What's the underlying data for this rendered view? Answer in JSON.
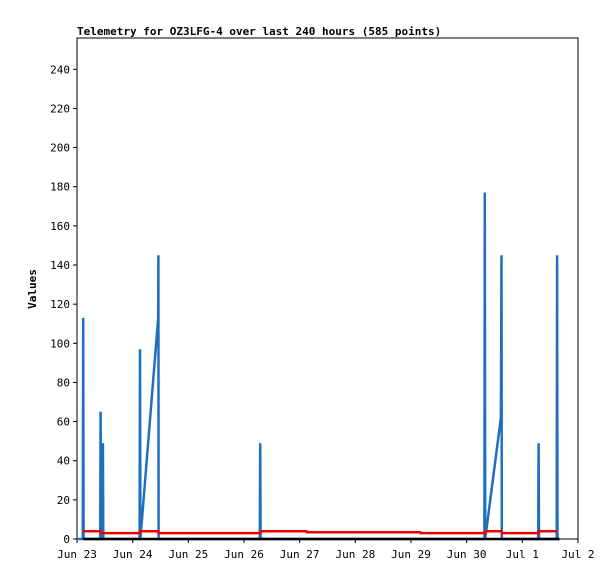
{
  "chart_data": {
    "type": "line",
    "title": "Telemetry for OZ3LFG-4 over last 240 hours (585 points)",
    "ylabel": "Values",
    "xlabel": "",
    "ylim": [
      0,
      256
    ],
    "xlim": [
      "Jun 23 00:00",
      "Jul 2 00:00"
    ],
    "grid": false,
    "yticks": [
      0,
      20,
      40,
      60,
      80,
      100,
      120,
      140,
      160,
      180,
      200,
      220,
      240
    ],
    "xticks": [
      "Jun 23",
      "Jun 24",
      "Jun 25",
      "Jun 26",
      "Jun 27",
      "Jun 28",
      "Jun 29",
      "Jun 30",
      "Jul 1",
      "Jul 2"
    ],
    "series": [
      {
        "color": "#1f6fc0",
        "points": [
          [
            "Jun 23 00:00",
            0
          ],
          [
            "Jun 23 02:30",
            0
          ],
          [
            "Jun 23 02:40",
            113
          ],
          [
            "Jun 23 02:50",
            0
          ],
          [
            "Jun 23 10:00",
            0
          ],
          [
            "Jun 23 10:10",
            65
          ],
          [
            "Jun 23 10:20",
            0
          ],
          [
            "Jun 23 11:00",
            0
          ],
          [
            "Jun 23 11:10",
            49
          ],
          [
            "Jun 23 11:20",
            0
          ],
          [
            "Jun 24 03:00",
            0
          ],
          [
            "Jun 24 03:10",
            97
          ],
          [
            "Jun 24 03:20",
            0
          ],
          [
            "Jun 24 11:00",
            113
          ],
          [
            "Jun 24 11:05",
            145
          ],
          [
            "Jun 24 11:10",
            0
          ],
          [
            "Jun 26 06:50",
            0
          ],
          [
            "Jun 26 07:00",
            49
          ],
          [
            "Jun 26 07:10",
            0
          ],
          [
            "Jun 30 07:40",
            0
          ],
          [
            "Jun 30 07:50",
            177
          ],
          [
            "Jun 30 08:00",
            0
          ],
          [
            "Jun 30 14:45",
            62
          ],
          [
            "Jun 30 15:00",
            145
          ],
          [
            "Jun 30 15:10",
            0
          ],
          [
            "Jul 1 06:50",
            0
          ],
          [
            "Jul 1 07:00",
            49
          ],
          [
            "Jul 1 07:10",
            0
          ],
          [
            "Jul 1 14:50",
            0
          ],
          [
            "Jul 1 15:00",
            145
          ],
          [
            "Jul 1 15:10",
            0
          ],
          [
            "Jul 1 16:00",
            0
          ]
        ]
      },
      {
        "color": "#ee0000",
        "points": [
          [
            "Jun 23 02:40",
            4
          ],
          [
            "Jun 23 10:00",
            4
          ],
          [
            "Jun 23 10:20",
            3
          ],
          [
            "Jun 24 03:00",
            3
          ],
          [
            "Jun 24 03:10",
            4
          ],
          [
            "Jun 24 11:00",
            4
          ],
          [
            "Jun 24 11:10",
            3
          ],
          [
            "Jun 26 07:00",
            3
          ],
          [
            "Jun 26 07:10",
            4
          ],
          [
            "Jun 27 03:00",
            4
          ],
          [
            "Jun 27 03:10",
            3.5
          ],
          [
            "Jun 29 04:00",
            3.5
          ],
          [
            "Jun 29 04:10",
            3
          ],
          [
            "Jun 30 08:00",
            3
          ],
          [
            "Jun 30 08:10",
            4
          ],
          [
            "Jun 30 15:00",
            4
          ],
          [
            "Jun 30 15:10",
            3
          ],
          [
            "Jul 1 07:00",
            3
          ],
          [
            "Jul 1 07:10",
            4
          ],
          [
            "Jul 1 15:00",
            4
          ]
        ]
      },
      {
        "color": "#000000",
        "points": [
          [
            "Jun 23 02:40",
            0
          ],
          [
            "Jul 1 16:00",
            0
          ]
        ]
      }
    ]
  }
}
